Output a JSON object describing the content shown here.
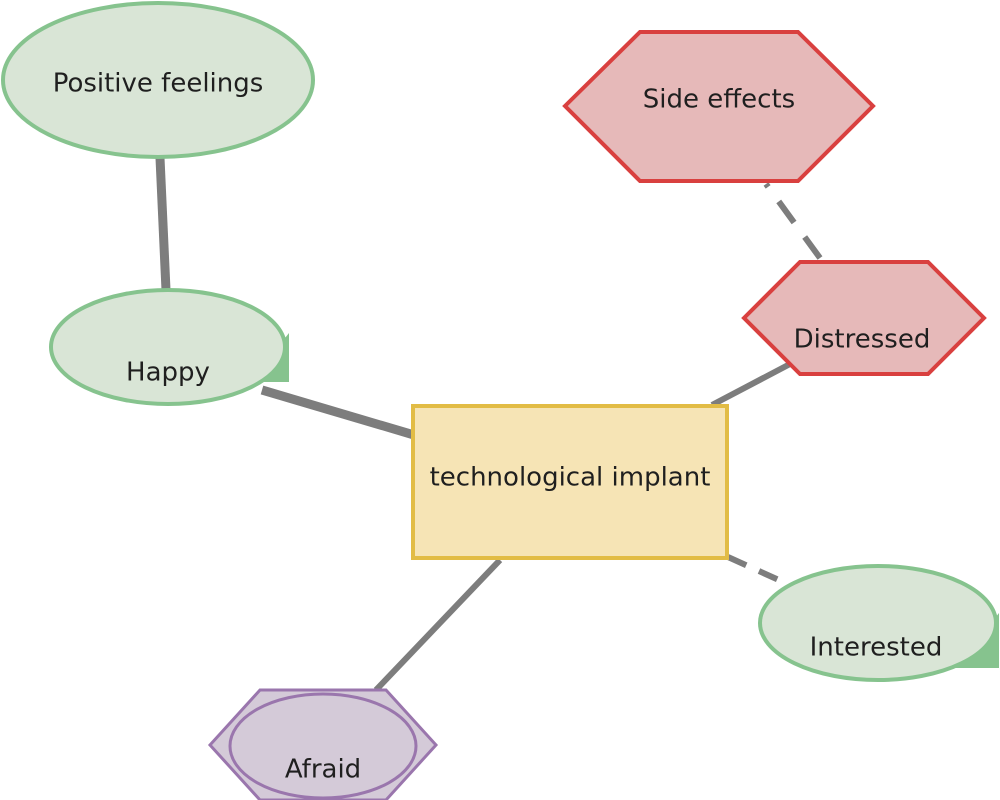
{
  "diagram": {
    "nodes": {
      "center": {
        "label": "technological implant",
        "shape": "rectangle",
        "fill": "#f6e4b5",
        "stroke": "#e2bc45"
      },
      "positive_feelings": {
        "label": "Positive feelings",
        "shape": "ellipse",
        "fill": "#d9e5d6",
        "stroke": "#86c38e"
      },
      "happy": {
        "label": "Happy",
        "shape": "speech-ellipse",
        "fill": "#d9e5d6",
        "stroke": "#86c38e"
      },
      "side_effects": {
        "label": "Side effects",
        "shape": "hexagon",
        "fill": "#e6b9b9",
        "stroke": "#d9403f"
      },
      "distressed": {
        "label": "Distressed",
        "shape": "hexagon",
        "fill": "#e6b9b9",
        "stroke": "#d9403f"
      },
      "interested": {
        "label": "Interested",
        "shape": "speech-ellipse",
        "fill": "#d9e5d6",
        "stroke": "#86c38e"
      },
      "afraid": {
        "label": "Afraid",
        "shape": "hexagon-ellipse",
        "fill": "#d4cad8",
        "stroke": "#9a76ad"
      }
    },
    "edges": [
      {
        "from": "Positive feelings",
        "to": "Happy",
        "style": "solid-thick"
      },
      {
        "from": "Happy",
        "to": "technological implant",
        "style": "solid-thick"
      },
      {
        "from": "technological implant",
        "to": "Distressed",
        "style": "solid"
      },
      {
        "from": "Distressed",
        "to": "Side effects",
        "style": "dashed"
      },
      {
        "from": "technological implant",
        "to": "Interested",
        "style": "dashed"
      },
      {
        "from": "technological implant",
        "to": "Afraid",
        "style": "solid"
      }
    ],
    "edge_color": "#7d7d7d"
  }
}
